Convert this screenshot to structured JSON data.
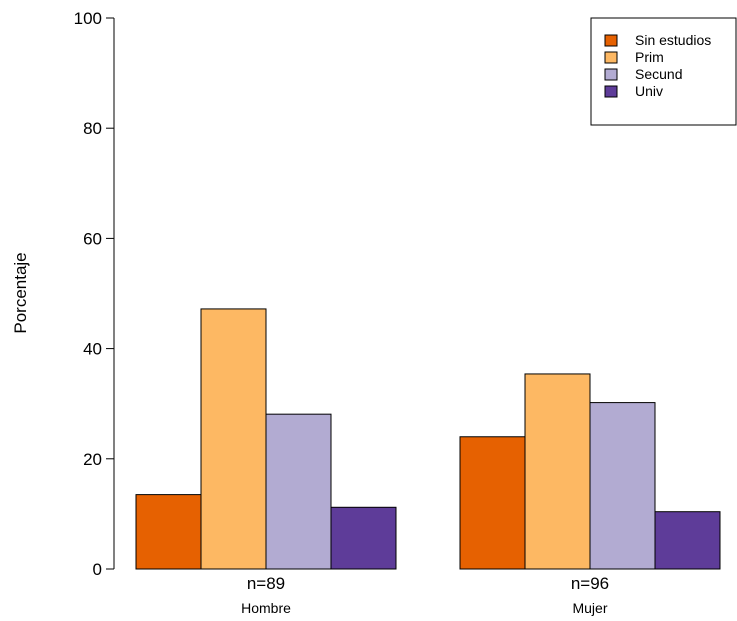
{
  "chart_data": {
    "type": "bar",
    "title": "",
    "xlabel": "",
    "ylabel": "Porcentaje",
    "ylim": [
      0,
      100
    ],
    "yticks": [
      0,
      20,
      40,
      60,
      80,
      100
    ],
    "grid": false,
    "legend_position": "top-right",
    "categories": [
      "Hombre",
      "Mujer"
    ],
    "category_counts": [
      "n=89",
      "n=96"
    ],
    "series": [
      {
        "name": "Sin estudios",
        "color": "#E66101",
        "values": [
          13.5,
          24.0
        ]
      },
      {
        "name": "Prim",
        "color": "#FDB863",
        "values": [
          47.2,
          35.4
        ]
      },
      {
        "name": "Secund",
        "color": "#B2ABD2",
        "values": [
          28.1,
          30.2
        ]
      },
      {
        "name": "Univ",
        "color": "#5E3C99",
        "values": [
          11.2,
          10.4
        ]
      }
    ]
  }
}
